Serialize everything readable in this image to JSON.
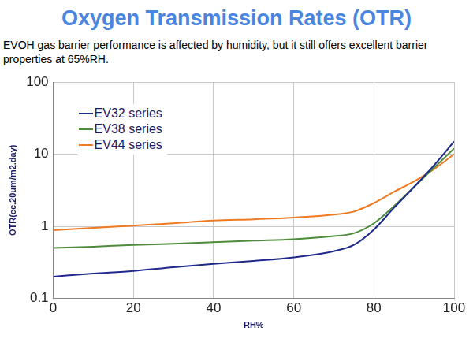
{
  "chart_data": {
    "type": "line",
    "title": "Oxygen Transmission Rates (OTR)",
    "subtitle": "EVOH gas barrier performance is affected by humidity, but it still offers excellent barrier properties at 65%RH.",
    "x_label": "RH%",
    "y_label": "OTR(cc.20um/m2.day)",
    "x": [
      0,
      10,
      20,
      30,
      40,
      50,
      60,
      70,
      75,
      80,
      85,
      90,
      95,
      100
    ],
    "series": [
      {
        "name": "EV32 series",
        "color": "#1f2a8c",
        "marker": "none",
        "line_style": "solid",
        "values": [
          0.2,
          0.22,
          0.24,
          0.27,
          0.3,
          0.33,
          0.37,
          0.45,
          0.55,
          0.9,
          1.8,
          3.5,
          7,
          15
        ]
      },
      {
        "name": "EV38 series",
        "color": "#4e8c3c",
        "marker": "none",
        "line_style": "solid",
        "values": [
          0.5,
          0.52,
          0.55,
          0.57,
          0.6,
          0.63,
          0.66,
          0.73,
          0.8,
          1.1,
          1.9,
          3.5,
          6.5,
          12
        ]
      },
      {
        "name": "EV44 series",
        "color": "#f07a22",
        "marker": "none",
        "line_style": "solid",
        "values": [
          0.88,
          0.95,
          1.02,
          1.1,
          1.2,
          1.25,
          1.32,
          1.45,
          1.6,
          2.1,
          3,
          4.2,
          6.2,
          10
        ]
      }
    ],
    "xlim": [
      0,
      100
    ],
    "xticks": [
      0,
      20,
      40,
      60,
      80,
      100
    ],
    "ylim": [
      0.1,
      100
    ],
    "yticks": [
      0.1,
      1,
      10,
      100
    ],
    "log": "y",
    "grid": true,
    "legend": "upper left"
  }
}
